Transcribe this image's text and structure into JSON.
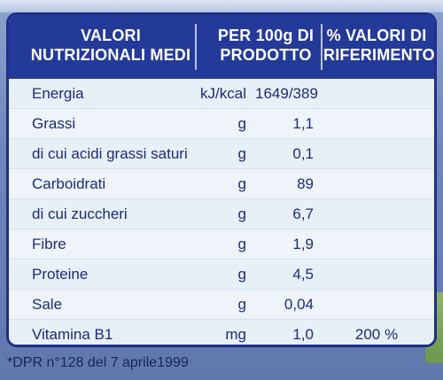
{
  "header": {
    "col1": "VALORI NUTRIZIONALI MEDI",
    "col2": "PER 100g DI PRODOTTO",
    "col3": "% VALORI DI RIFERIMENTO*"
  },
  "rows": [
    {
      "name": "Energia",
      "unit": "kJ/kcal",
      "value": "1649/389",
      "ref": ""
    },
    {
      "name": "Grassi",
      "unit": "g",
      "value": "1,1",
      "ref": ""
    },
    {
      "name": "di cui acidi grassi saturi",
      "unit": "g",
      "value": "0,1",
      "ref": ""
    },
    {
      "name": "Carboidrati",
      "unit": "g",
      "value": "89",
      "ref": ""
    },
    {
      "name": "di cui zuccheri",
      "unit": "g",
      "value": "6,7",
      "ref": ""
    },
    {
      "name": "Fibre",
      "unit": "g",
      "value": "1,9",
      "ref": ""
    },
    {
      "name": "Proteine",
      "unit": "g",
      "value": "4,5",
      "ref": ""
    },
    {
      "name": "Sale",
      "unit": "g",
      "value": "0,04",
      "ref": ""
    },
    {
      "name": "Vitamina B1",
      "unit": "mg",
      "value": "1,0",
      "ref": "200 %"
    }
  ],
  "footnote": "*DPR n°128 del 7 aprile1999"
}
